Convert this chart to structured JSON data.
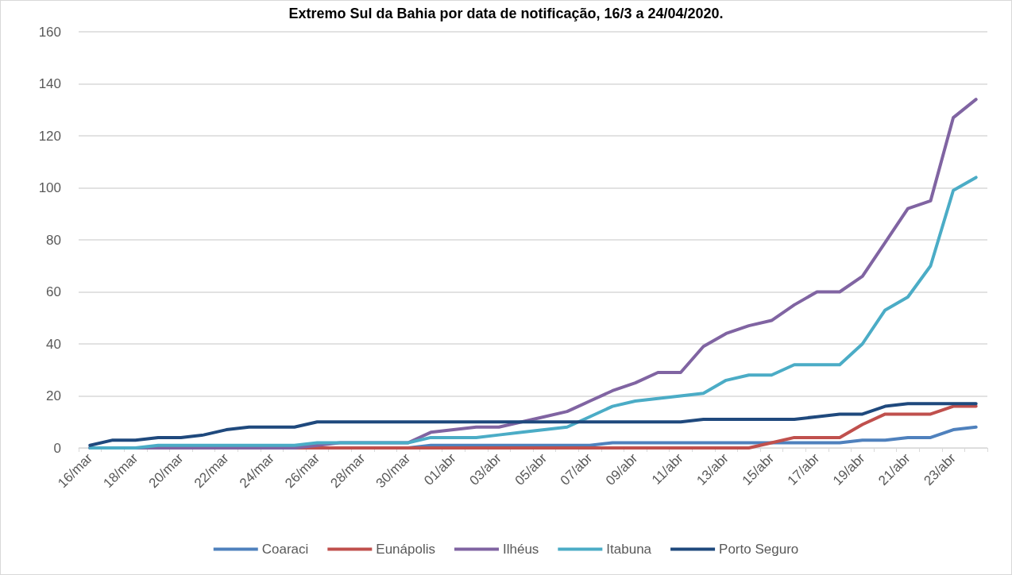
{
  "chart_data": {
    "type": "line",
    "title": "Extremo Sul da Bahia por data de notificação, 16/3 a 24/04/2020.",
    "categories": [
      "16/mar",
      null,
      "18/mar",
      null,
      "20/mar",
      null,
      "22/mar",
      null,
      "24/mar",
      null,
      "26/mar",
      null,
      "28/mar",
      null,
      "30/mar",
      null,
      "01/abr",
      null,
      "03/abr",
      null,
      "05/abr",
      null,
      "07/abr",
      null,
      "09/abr",
      null,
      "11/abr",
      null,
      "13/abr",
      null,
      "15/abr",
      null,
      "17/abr",
      null,
      "19/abr",
      null,
      "21/abr",
      null,
      "23/abr",
      null
    ],
    "series": [
      {
        "name": "Coaraci",
        "color": "#4f81bd",
        "values": [
          0,
          0,
          0,
          0,
          0,
          0,
          0,
          0,
          0,
          0,
          0,
          0,
          0,
          0,
          0,
          1,
          1,
          1,
          1,
          1,
          1,
          1,
          1,
          2,
          2,
          2,
          2,
          2,
          2,
          2,
          2,
          2,
          2,
          2,
          3,
          3,
          4,
          4,
          7,
          8
        ]
      },
      {
        "name": "Eunápolis",
        "color": "#c0504d",
        "values": [
          null,
          null,
          null,
          null,
          null,
          null,
          null,
          null,
          0,
          0,
          0,
          0,
          0,
          0,
          0,
          0,
          0,
          0,
          0,
          0,
          0,
          0,
          0,
          0,
          0,
          0,
          0,
          0,
          0,
          0,
          2,
          4,
          4,
          4,
          9,
          13,
          13,
          13,
          16,
          16
        ]
      },
      {
        "name": "Ilhéus",
        "color": "#8064a2",
        "values": [
          0,
          0,
          0,
          0,
          0,
          0,
          0,
          0,
          0,
          0,
          1,
          2,
          2,
          2,
          2,
          6,
          7,
          8,
          8,
          10,
          12,
          14,
          18,
          22,
          25,
          29,
          29,
          39,
          44,
          47,
          49,
          55,
          60,
          60,
          66,
          79,
          92,
          95,
          127,
          134
        ]
      },
      {
        "name": "Itabuna",
        "color": "#4bacc6",
        "values": [
          0,
          0,
          0,
          1,
          1,
          1,
          1,
          1,
          1,
          1,
          2,
          2,
          2,
          2,
          2,
          4,
          4,
          4,
          5,
          6,
          7,
          8,
          12,
          16,
          18,
          19,
          20,
          21,
          26,
          28,
          28,
          32,
          32,
          32,
          40,
          53,
          58,
          70,
          99,
          104
        ]
      },
      {
        "name": "Porto Seguro",
        "color": "#1f497d",
        "values": [
          1,
          3,
          3,
          4,
          4,
          5,
          7,
          8,
          8,
          8,
          10,
          10,
          10,
          10,
          10,
          10,
          10,
          10,
          10,
          10,
          10,
          10,
          10,
          10,
          10,
          10,
          10,
          11,
          11,
          11,
          11,
          11,
          12,
          13,
          13,
          16,
          17,
          17,
          17,
          17
        ]
      }
    ],
    "ylim": [
      0,
      160
    ],
    "yticks": [
      0,
      20,
      40,
      60,
      80,
      100,
      120,
      140,
      160
    ],
    "grid": "y",
    "legend": "bottom",
    "marker": "none",
    "line_style": "solid"
  }
}
